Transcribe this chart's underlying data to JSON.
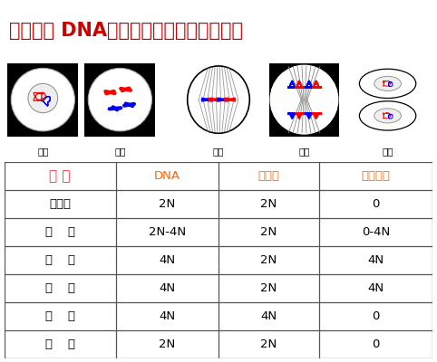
{
  "title": "有丝分裂 DNA、染色体、染色单体的变化",
  "title_color": "#cc0000",
  "title_fontsize": 15,
  "header_row": [
    "时 期",
    "DNA",
    "染色体",
    "染色单体"
  ],
  "header_color_period": "#ff3333",
  "header_color_other": "#ff6600",
  "rows": [
    [
      "体细胞",
      "2N",
      "2N",
      "0"
    ],
    [
      "间    期",
      "2N-4N",
      "2N",
      "0-4N"
    ],
    [
      "前    期",
      "4N",
      "2N",
      "4N"
    ],
    [
      "中    期",
      "4N",
      "2N",
      "4N"
    ],
    [
      "后    期",
      "4N",
      "4N",
      "0"
    ],
    [
      "末    期",
      "2N",
      "2N",
      "0"
    ]
  ],
  "table_border_color": "#555555",
  "row_text_color": "#000000",
  "bg_color": "#ffffff",
  "phase_labels": [
    "间期",
    "前期",
    "中期",
    "后期",
    "末期"
  ]
}
